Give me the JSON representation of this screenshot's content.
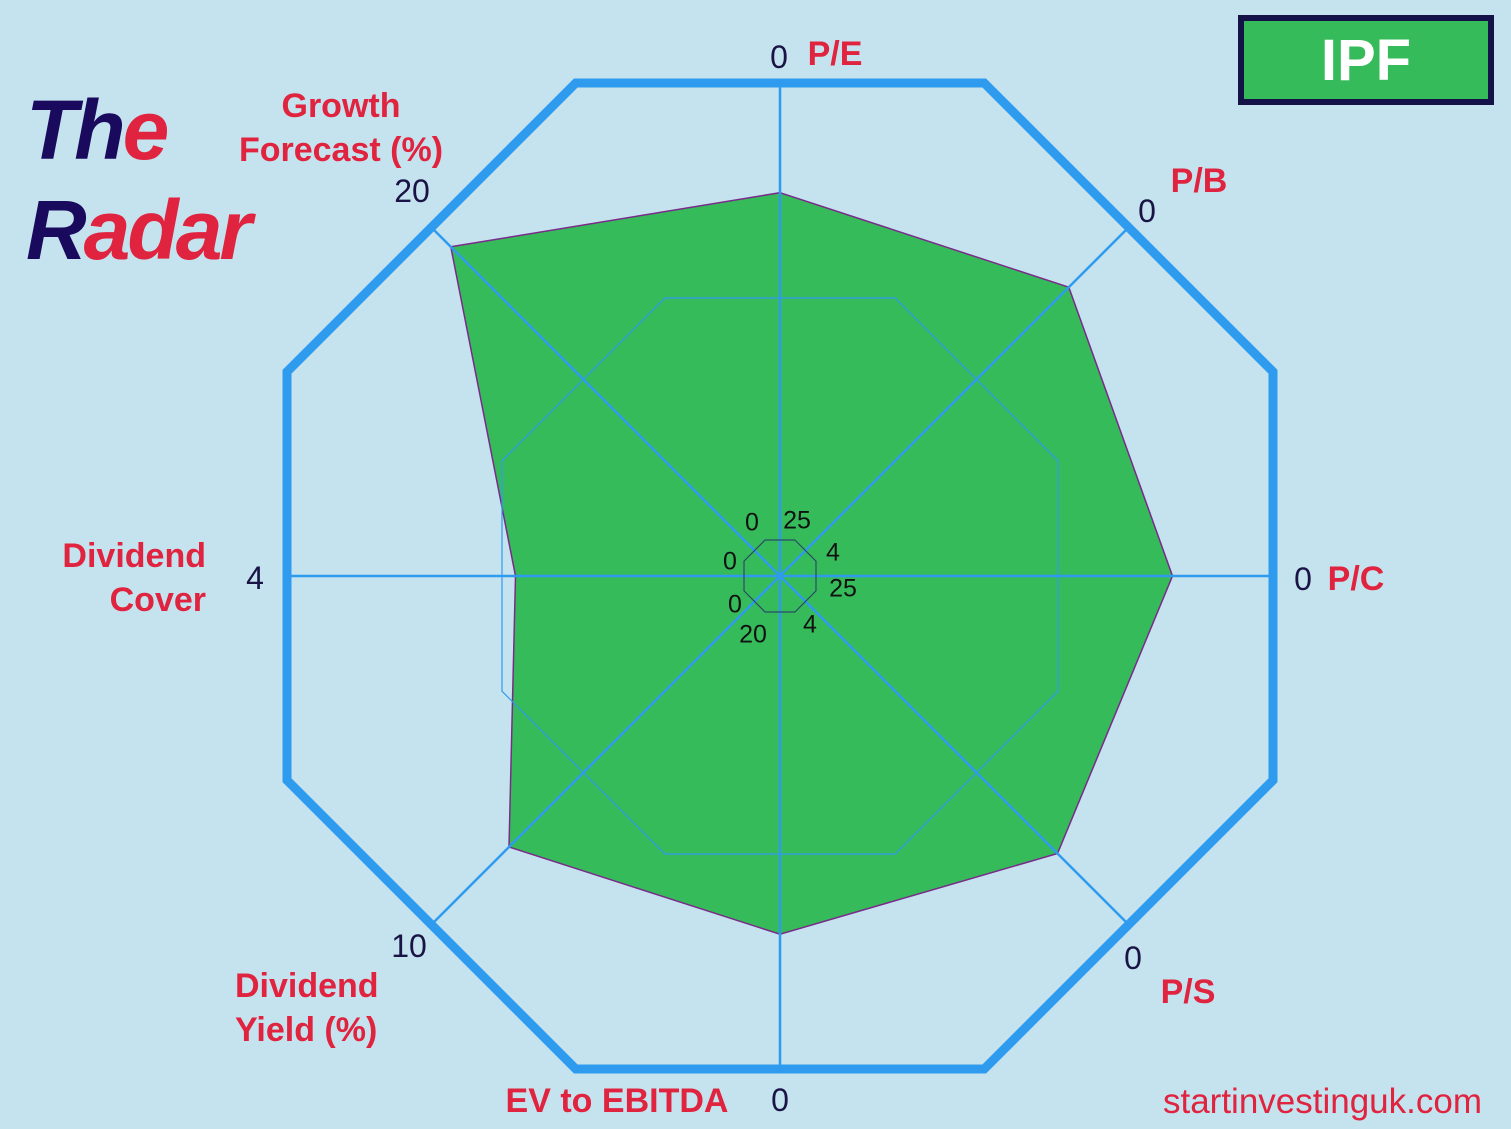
{
  "title": {
    "part1": "Th",
    "part2": "e",
    "part3": "R",
    "part4": "adar"
  },
  "ticker": "IPF",
  "website": "startinvestinguk.com",
  "colors": {
    "background": "#c5e3ee",
    "grid": "#2f9bef",
    "fill": "#36bb5b",
    "outline": "#7a2a8a",
    "label": "#e0233f",
    "navy": "#1a0a5e"
  },
  "chart_data": {
    "type": "radar",
    "axes": [
      {
        "name": "P/E",
        "center": 25,
        "outer": 0,
        "value": 6.0
      },
      {
        "name": "P/B",
        "center": 4,
        "outer": 0,
        "value": 0.74
      },
      {
        "name": "P/C",
        "center": 25,
        "outer": 0,
        "value": 5.5
      },
      {
        "name": "P/S",
        "center": 4,
        "outer": 0,
        "value": 0.88
      },
      {
        "name": "EV to EBITDA",
        "center": 20,
        "outer": 0,
        "value": 5.9
      },
      {
        "name": "Dividend Yield (%)",
        "center": 0,
        "outer": 10,
        "value": 7.6
      },
      {
        "name": "Dividend Cover",
        "center": 0,
        "outer": 4,
        "value": 2.0
      },
      {
        "name": "Growth Forecast (%)",
        "center": 0,
        "outer": 20,
        "value": 18.8
      }
    ],
    "axis_labels": {
      "pe": "P/E",
      "pb": "P/B",
      "pc": "P/C",
      "ps": "P/S",
      "ev": "EV to EBITDA",
      "dy1": "Dividend",
      "dy2": "Yield (%)",
      "dc1": "Dividend",
      "dc2": "Cover",
      "gf1": "Growth",
      "gf2": "Forecast (%)"
    },
    "outer_ticks": {
      "pe": "0",
      "pb": "0",
      "pc": "0",
      "ps": "0",
      "ev": "0",
      "dy": "10",
      "dc": "4",
      "gf": "20"
    },
    "center_ticks": {
      "pe": "25",
      "pb": "4",
      "pc": "25",
      "ps": "4",
      "ev": "20",
      "dy": "0",
      "dc": "0",
      "gf": "0"
    }
  }
}
